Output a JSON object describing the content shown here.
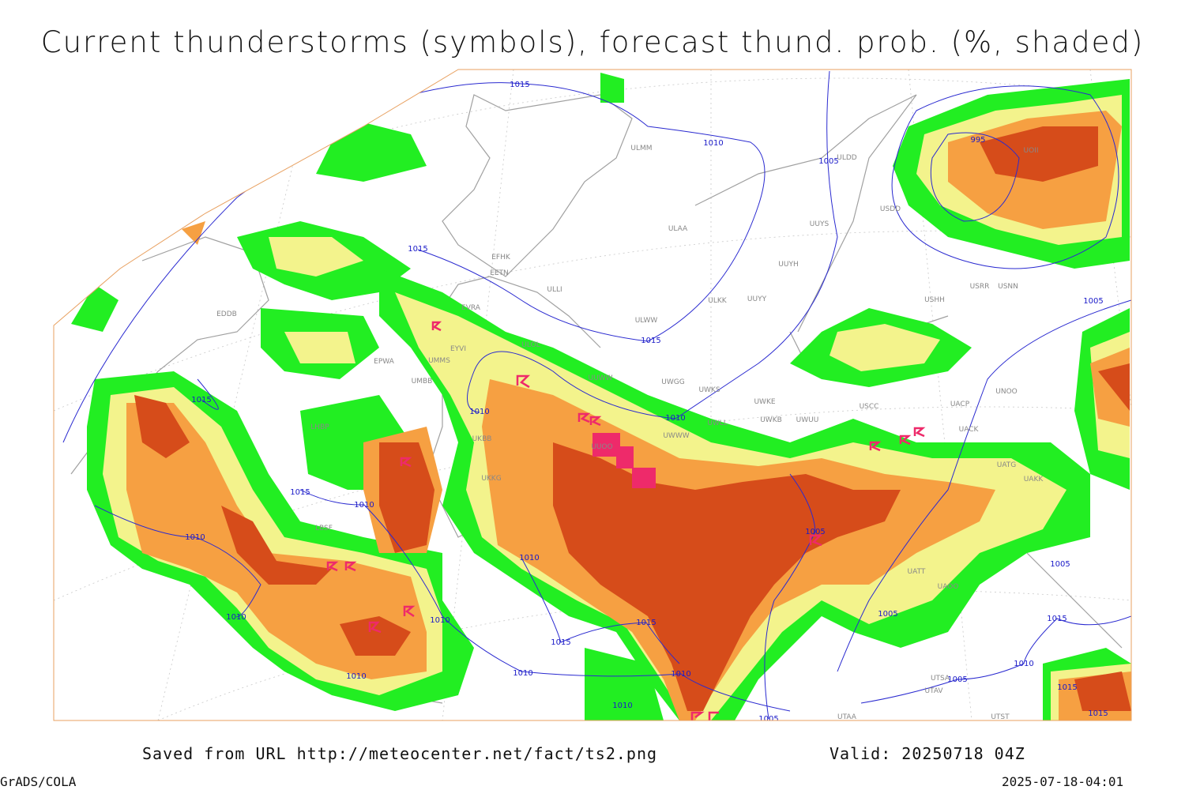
{
  "header": {
    "title": "Current thunderstorms (symbols), forecast thund. prob. (%, shaded)"
  },
  "footer": {
    "source": "Saved from URL http://meteocenter.net/fact/ts2.png",
    "valid": "Valid: 20250718 04Z",
    "software": "GrADS/COLA",
    "timestamp": "2025-07-18-04:01"
  },
  "isobar_labels": [
    1015,
    1015,
    1010,
    1005,
    995,
    1015,
    1015,
    1005,
    1010,
    1010,
    1015,
    1015,
    1010,
    1010,
    1005,
    1010,
    1005,
    1010,
    1010,
    1015,
    1015,
    1005,
    1015,
    1010,
    1010,
    1010,
    1010,
    1005,
    1015,
    1010,
    1005,
    1015
  ],
  "stations": [
    "ULMM",
    "ULDD",
    "ULAA",
    "UUYS",
    "USDD",
    "UOII",
    "EFHK",
    "EETN",
    "ULLI",
    "UUYH",
    "ULKK",
    "UUYY",
    "USHH",
    "USRR",
    "USNN",
    "EVRA",
    "ULWW",
    "ULOL",
    "EYVI",
    "UMMS",
    "EPWA",
    "UUWW",
    "UWGG",
    "UWKS",
    "UMBB",
    "UNOO",
    "UACP",
    "USCC",
    "UWKE",
    "UWKB",
    "UWUU",
    "UACK",
    "UWWW",
    "UWLL",
    "UKBB",
    "UATG",
    "UAKK",
    "UKKG",
    "EDDB",
    "LHBP",
    "LBSF",
    "UUOO",
    "UATT",
    "UAOO",
    "UTSA",
    "UTAA",
    "UTAV",
    "UTST"
  ]
}
